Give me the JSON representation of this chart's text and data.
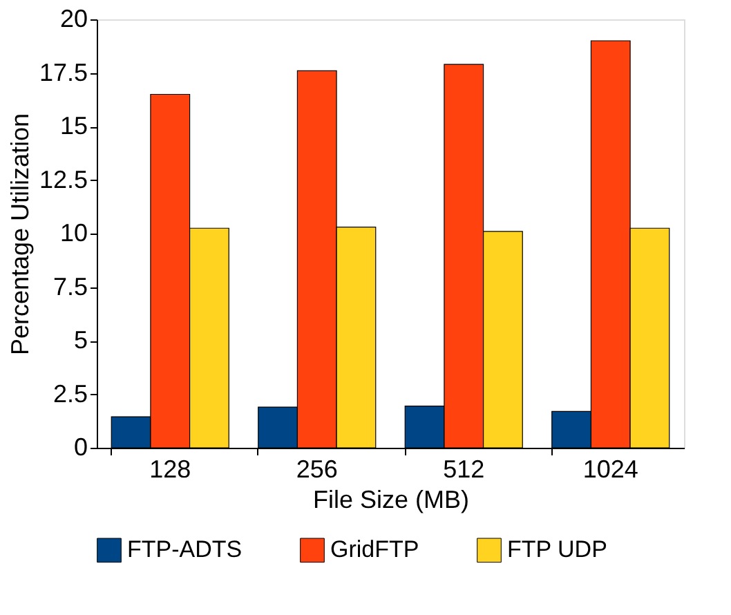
{
  "chart_data": {
    "type": "bar",
    "xlabel": "File Size (MB)",
    "ylabel": "Percentage Utilization",
    "categories": [
      "128",
      "256",
      "512",
      "1024"
    ],
    "series": [
      {
        "name": "FTP-ADTS",
        "color": "#004586",
        "values": [
          1.45,
          1.9,
          1.95,
          1.7
        ]
      },
      {
        "name": "GridFTP",
        "color": "#ff420e",
        "values": [
          16.5,
          17.6,
          17.9,
          19.0
        ]
      },
      {
        "name": "FTP UDP",
        "color": "#ffd320",
        "values": [
          10.25,
          10.3,
          10.1,
          10.25
        ]
      }
    ],
    "ylim": [
      0,
      20
    ],
    "yticks": [
      0,
      2.5,
      5,
      7.5,
      10,
      12.5,
      15,
      17.5,
      20
    ],
    "grid": false,
    "legend": "bottom"
  }
}
